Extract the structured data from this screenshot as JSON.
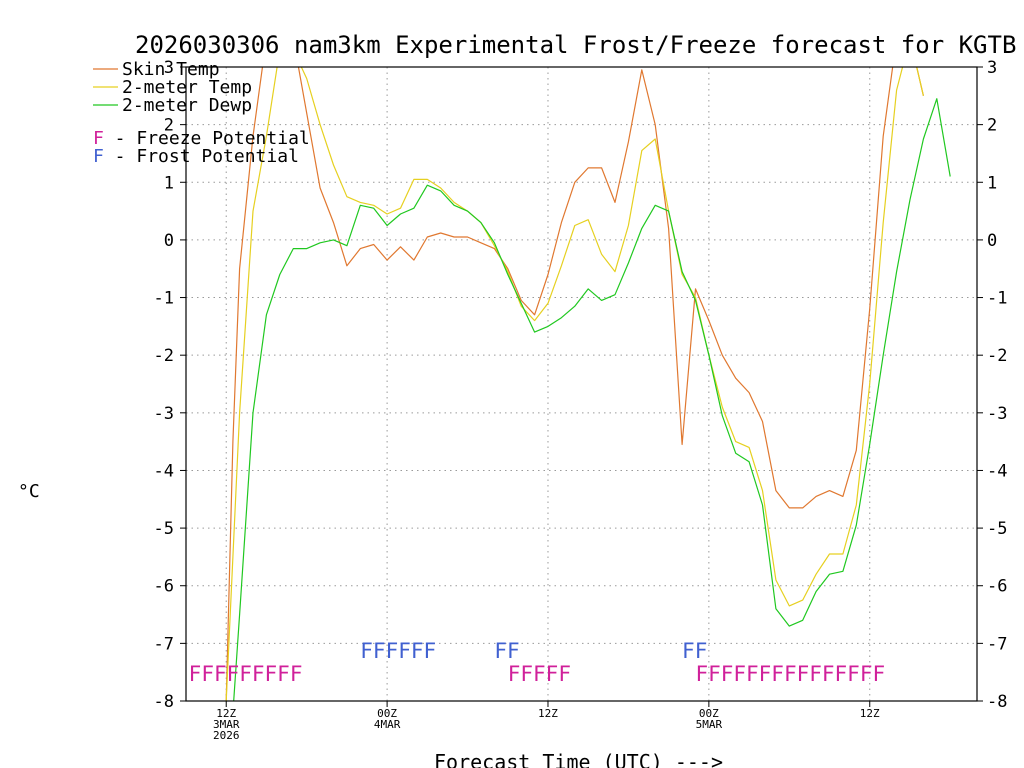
{
  "chart_data": {
    "type": "line",
    "title": "2026030306 nam3km Experimental Frost/Freeze forecast for KGTB",
    "xlabel": "Forecast Time (UTC) --->",
    "ylabel": "°C",
    "ylim": [
      -8,
      3
    ],
    "yticks": [
      "-8",
      "-7",
      "-6",
      "-5",
      "-4",
      "-3",
      "-2",
      "-1",
      "0",
      "1",
      "2",
      "3"
    ],
    "x_range_hours": [
      3,
      62
    ],
    "x_ticks": [
      {
        "hour": 6,
        "lines": [
          "12Z",
          "3MAR",
          "2026"
        ]
      },
      {
        "hour": 18,
        "lines": [
          "00Z",
          "4MAR"
        ]
      },
      {
        "hour": 30,
        "lines": [
          "12Z"
        ]
      },
      {
        "hour": 42,
        "lines": [
          "00Z",
          "5MAR"
        ]
      },
      {
        "hour": 54,
        "lines": [
          "12Z"
        ]
      }
    ],
    "grid": true,
    "legend": [
      {
        "label": "Skin Temp",
        "color": "#e07830"
      },
      {
        "label": "2-meter Temp",
        "color": "#e6d020"
      },
      {
        "label": "2-meter Dewp",
        "color": "#20c820"
      }
    ],
    "potential_legend": [
      {
        "letter": "F",
        "text": " - Freeze Potential",
        "color": "#d0209a"
      },
      {
        "letter": "F",
        "text": " - Frost Potential",
        "color": "#4060d0"
      }
    ],
    "series": [
      {
        "name": "Skin Temp",
        "color": "#e07830",
        "x": [
          6,
          6.5,
          7,
          8,
          9,
          10,
          11,
          12,
          13,
          14,
          15,
          16,
          17,
          18,
          19,
          20,
          21,
          22,
          23,
          24,
          25,
          26,
          27,
          28,
          29,
          30,
          31,
          32,
          33,
          34,
          35,
          36,
          37,
          38,
          39,
          40,
          41,
          42,
          43,
          44,
          45,
          46,
          47,
          48,
          49,
          50,
          51,
          52,
          53,
          54,
          55,
          56,
          57,
          58,
          59,
          60,
          61,
          62
        ],
        "y": [
          -8,
          -3.5,
          -0.5,
          1.8,
          3.5,
          3.5,
          3.5,
          2.2,
          0.9,
          0.3,
          -0.45,
          -0.15,
          -0.08,
          -0.35,
          -0.12,
          -0.35,
          0.05,
          0.12,
          0.05,
          0.05,
          -0.05,
          -0.15,
          -0.5,
          -1.05,
          -1.3,
          -0.6,
          0.3,
          1.0,
          1.25,
          1.25,
          0.65,
          1.7,
          2.95,
          2.0,
          0.2,
          -3.55,
          -0.85,
          -1.4,
          -2.0,
          -2.4,
          -2.65,
          -3.15,
          -4.35,
          -4.65,
          -4.65,
          -4.45,
          -4.35,
          -4.45,
          -3.65,
          -1.2,
          1.8,
          3.5,
          3.5,
          2.5,
          null,
          null,
          null,
          null
        ]
      },
      {
        "name": "2-meter Temp",
        "color": "#e6d020",
        "x": [
          6,
          6.5,
          7,
          8,
          9,
          10,
          11,
          12,
          13,
          14,
          15,
          16,
          17,
          18,
          19,
          20,
          21,
          22,
          23,
          24,
          25,
          26,
          27,
          28,
          29,
          30,
          31,
          32,
          33,
          34,
          35,
          36,
          37,
          38,
          39,
          40,
          41,
          42,
          43,
          44,
          45,
          46,
          47,
          48,
          49,
          50,
          51,
          52,
          53,
          54,
          55,
          56,
          57,
          58,
          59,
          60,
          61,
          62
        ],
        "y": [
          -8,
          -5.5,
          -3.0,
          0.5,
          1.8,
          3.3,
          3.3,
          2.8,
          2.0,
          1.3,
          0.75,
          0.65,
          0.6,
          0.45,
          0.55,
          1.05,
          1.05,
          0.9,
          0.65,
          0.5,
          0.3,
          -0.1,
          -0.55,
          -1.15,
          -1.4,
          -1.1,
          -0.45,
          0.25,
          0.35,
          -0.25,
          -0.55,
          0.25,
          1.55,
          1.75,
          0.5,
          -0.6,
          -1.0,
          -2.0,
          -2.9,
          -3.5,
          -3.6,
          -4.35,
          -5.9,
          -6.35,
          -6.25,
          -5.8,
          -5.45,
          -5.45,
          -4.6,
          -2.5,
          0.3,
          2.6,
          3.5,
          2.5,
          null,
          null,
          null,
          null
        ]
      },
      {
        "name": "2-meter Dewp",
        "color": "#20c820",
        "x": [
          6,
          6.5,
          7,
          8,
          9,
          10,
          11,
          12,
          13,
          14,
          15,
          16,
          17,
          18,
          19,
          20,
          21,
          22,
          23,
          24,
          25,
          26,
          27,
          28,
          29,
          30,
          31,
          32,
          33,
          34,
          35,
          36,
          37,
          38,
          39,
          40,
          41,
          42,
          43,
          44,
          45,
          46,
          47,
          48,
          49,
          50,
          51,
          52,
          53,
          54,
          55,
          56,
          57,
          58,
          59,
          60,
          61,
          62
        ],
        "y": [
          -8.2,
          -8.2,
          -6.5,
          -3.0,
          -1.3,
          -0.6,
          -0.15,
          -0.15,
          -0.05,
          0.0,
          -0.1,
          0.6,
          0.55,
          0.25,
          0.45,
          0.55,
          0.95,
          0.85,
          0.6,
          0.5,
          0.3,
          -0.05,
          -0.6,
          -1.1,
          -1.6,
          -1.5,
          -1.35,
          -1.15,
          -0.85,
          -1.05,
          -0.95,
          -0.4,
          0.2,
          0.6,
          0.5,
          -0.55,
          -1.05,
          -2.0,
          -3.05,
          -3.7,
          -3.85,
          -4.6,
          -6.4,
          -6.7,
          -6.6,
          -6.1,
          -5.8,
          -5.75,
          -4.95,
          -3.55,
          -2.0,
          -0.55,
          0.7,
          1.75,
          2.45,
          1.1,
          null,
          null
        ]
      }
    ],
    "flags": [
      {
        "type": "freeze",
        "text": "FFFFFFFFF",
        "start_hour": 3.2,
        "color": "#d0209a"
      },
      {
        "type": "frost",
        "text": "FFFFFF",
        "start_hour": 16.0,
        "color": "#4060d0"
      },
      {
        "type": "frost",
        "text": "FF",
        "start_hour": 26.0,
        "color": "#4060d0"
      },
      {
        "type": "freeze",
        "text": "FFFFF",
        "start_hour": 27.0,
        "color": "#d0209a"
      },
      {
        "type": "frost",
        "text": "FF",
        "start_hour": 40.0,
        "color": "#4060d0"
      },
      {
        "type": "freeze",
        "text": "FFFFFFFFFFFFFFF",
        "start_hour": 41.0,
        "color": "#d0209a"
      }
    ]
  }
}
